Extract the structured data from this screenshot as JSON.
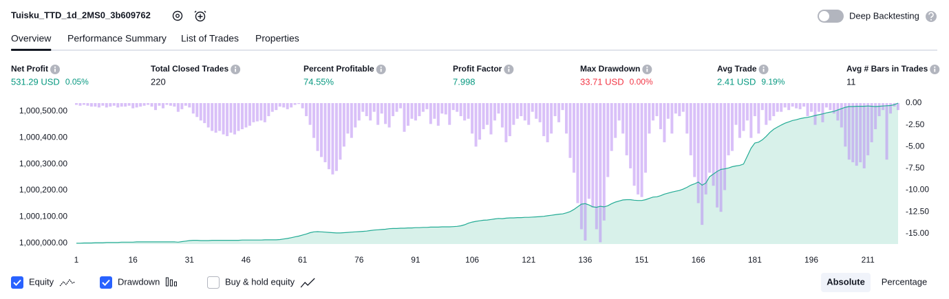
{
  "header": {
    "title": "Tuisku_TTD_1d_2MS0_3b609762",
    "deep_backtesting": {
      "label": "Deep Backtesting",
      "enabled": false
    }
  },
  "tabs": {
    "items": [
      "Overview",
      "Performance Summary",
      "List of Trades",
      "Properties"
    ],
    "active": 0
  },
  "metrics": [
    {
      "label": "Net Profit",
      "value": "531.29 USD",
      "sub": "0.05%",
      "tone": "up"
    },
    {
      "label": "Total Closed Trades",
      "value": 220,
      "tone": "neutral"
    },
    {
      "label": "Percent Profitable",
      "value": "74.55%",
      "tone": "up"
    },
    {
      "label": "Profit Factor",
      "value": "7.998",
      "tone": "up"
    },
    {
      "label": "Max Drawdown",
      "value": "33.71 USD",
      "sub": "0.00%",
      "tone": "down"
    },
    {
      "label": "Avg Trade",
      "value": "2.41 USD",
      "sub": "9.19%",
      "tone": "up"
    },
    {
      "label": "Avg # Bars in Trades",
      "value": 11,
      "tone": "neutral"
    }
  ],
  "chart_data": {
    "type": "equity_drawdown",
    "x": [
      1,
      2,
      3,
      4,
      5,
      6,
      7,
      8,
      9,
      10,
      11,
      12,
      13,
      14,
      15,
      16,
      17,
      18,
      19,
      20,
      21,
      22,
      23,
      24,
      25,
      26,
      27,
      28,
      29,
      30,
      31,
      32,
      33,
      34,
      35,
      36,
      37,
      38,
      39,
      40,
      41,
      42,
      43,
      44,
      45,
      46,
      47,
      48,
      49,
      50,
      51,
      52,
      53,
      54,
      55,
      56,
      57,
      58,
      59,
      60,
      61,
      62,
      63,
      64,
      65,
      66,
      67,
      68,
      69,
      70,
      71,
      72,
      73,
      74,
      75,
      76,
      77,
      78,
      79,
      80,
      81,
      82,
      83,
      84,
      85,
      86,
      87,
      88,
      89,
      90,
      91,
      92,
      93,
      94,
      95,
      96,
      97,
      98,
      99,
      100,
      101,
      102,
      103,
      104,
      105,
      106,
      107,
      108,
      109,
      110,
      111,
      112,
      113,
      114,
      115,
      116,
      117,
      118,
      119,
      120,
      121,
      122,
      123,
      124,
      125,
      126,
      127,
      128,
      129,
      130,
      131,
      132,
      133,
      134,
      135,
      136,
      137,
      138,
      139,
      140,
      141,
      142,
      143,
      144,
      145,
      146,
      147,
      148,
      149,
      150,
      151,
      152,
      153,
      154,
      155,
      156,
      157,
      158,
      159,
      160,
      161,
      162,
      163,
      164,
      165,
      166,
      167,
      168,
      169,
      170,
      171,
      172,
      173,
      174,
      175,
      176,
      177,
      178,
      179,
      180,
      181,
      182,
      183,
      184,
      185,
      186,
      187,
      188,
      189,
      190,
      191,
      192,
      193,
      194,
      195,
      196,
      197,
      198,
      199,
      200,
      201,
      202,
      203,
      204,
      205,
      206,
      207,
      208,
      209,
      210,
      211,
      212,
      213,
      214,
      215,
      216,
      217,
      218,
      219
    ],
    "xlim": [
      1,
      219
    ],
    "xticks": [
      1,
      16,
      31,
      46,
      61,
      76,
      91,
      106,
      121,
      136,
      151,
      166,
      181,
      196,
      211
    ],
    "ylim": [
      999997,
      1000531
    ],
    "yticks": [
      {
        "value": 1000000,
        "label": "1,000,000.00"
      },
      {
        "value": 1000100,
        "label": "1,000,100.00"
      },
      {
        "value": 1000200,
        "label": "1,000,200.00"
      },
      {
        "value": 1000300,
        "label": "1,000,300.00"
      },
      {
        "value": 1000400,
        "label": "1,000,400.00"
      },
      {
        "value": 1000500,
        "label": "1,000,500.00"
      }
    ],
    "y2lim": [
      -16.2,
      0
    ],
    "y2ticks": [
      {
        "value": 0,
        "label": "0.00"
      },
      {
        "value": -2.5,
        "label": "-2.50"
      },
      {
        "value": -5,
        "label": "-5.00"
      },
      {
        "value": -7.5,
        "label": "-7.50"
      },
      {
        "value": -10,
        "label": "-10.00"
      },
      {
        "value": -12.5,
        "label": "-12.50"
      },
      {
        "value": -15,
        "label": "-15.00"
      }
    ],
    "series": [
      {
        "name": "Equity",
        "color": "#22ab94",
        "area_color": "#d8f1ea",
        "checked": true,
        "values": [
          1000000,
          1000000,
          1000001,
          1000001,
          1000001,
          1000002,
          1000002,
          1000002,
          1000003,
          1000003,
          1000003,
          1000003,
          1000004,
          1000004,
          1000004,
          1000004,
          1000005,
          1000005,
          1000005,
          1000005,
          1000005,
          1000005,
          1000005,
          1000005,
          1000005,
          1000005,
          1000005,
          1000004,
          1000006,
          1000008,
          1000010,
          1000011,
          1000011,
          1000010,
          1000010,
          1000010,
          1000011,
          1000011,
          1000011,
          1000011,
          1000011,
          1000011,
          1000011,
          1000011,
          1000012,
          1000012,
          1000012,
          1000012,
          1000012,
          1000012,
          1000013,
          1000013,
          1000013,
          1000013,
          1000014,
          1000016,
          1000018,
          1000021,
          1000024,
          1000027,
          1000031,
          1000035,
          1000040,
          1000043,
          1000044,
          1000043,
          1000042,
          1000041,
          1000040,
          1000039,
          1000039,
          1000040,
          1000041,
          1000042,
          1000043,
          1000044,
          1000045,
          1000046,
          1000048,
          1000050,
          1000051,
          1000052,
          1000053,
          1000055,
          1000056,
          1000056,
          1000057,
          1000057,
          1000058,
          1000058,
          1000059,
          1000059,
          1000060,
          1000060,
          1000061,
          1000061,
          1000061,
          1000062,
          1000062,
          1000062,
          1000063,
          1000064,
          1000066,
          1000070,
          1000076,
          1000080,
          1000083,
          1000085,
          1000087,
          1000088,
          1000090,
          1000092,
          1000094,
          1000093,
          1000095,
          1000096,
          1000096,
          1000097,
          1000097,
          1000098,
          1000098,
          1000099,
          1000100,
          1000101,
          1000102,
          1000104,
          1000106,
          1000108,
          1000110,
          1000111,
          1000115,
          1000120,
          1000128,
          1000138,
          1000148,
          1000150,
          1000145,
          1000138,
          1000136,
          1000140,
          1000138,
          1000142,
          1000150,
          1000156,
          1000160,
          1000164,
          1000165,
          1000165,
          1000163,
          1000162,
          1000162,
          1000165,
          1000170,
          1000175,
          1000176,
          1000180,
          1000186,
          1000190,
          1000194,
          1000197,
          1000200,
          1000205,
          1000212,
          1000220,
          1000225,
          1000232,
          1000220,
          1000228,
          1000252,
          1000262,
          1000272,
          1000280,
          1000282,
          1000285,
          1000290,
          1000293,
          1000295,
          1000300,
          1000330,
          1000360,
          1000380,
          1000383,
          1000392,
          1000405,
          1000420,
          1000432,
          1000440,
          1000448,
          1000455,
          1000460,
          1000465,
          1000468,
          1000472,
          1000475,
          1000477,
          1000480,
          1000484,
          1000487,
          1000490,
          1000494,
          1000497,
          1000500,
          1000505,
          1000510,
          1000515,
          1000518,
          1000518,
          1000519,
          1000519,
          1000519,
          1000520,
          1000519,
          1000518,
          1000519,
          1000520,
          1000521,
          1000522,
          1000525,
          1000531
        ]
      },
      {
        "name": "Drawdown",
        "color": "#b98cf3",
        "axis": "y2",
        "checked": true,
        "values": [
          -0.2,
          -0.3,
          -0.2,
          -0.3,
          -0.4,
          -0.4,
          -0.5,
          -0.3,
          -0.5,
          -0.4,
          -0.3,
          -0.5,
          -0.4,
          -0.4,
          -0.3,
          -0.6,
          -0.5,
          -0.4,
          -0.3,
          -0.2,
          -0.4,
          -0.8,
          -0.3,
          -0.6,
          -0.2,
          -0.3,
          -0.4,
          -1.0,
          -0.7,
          -0.3,
          -0.5,
          -1.2,
          -1.6,
          -2.0,
          -2.3,
          -2.8,
          -3.2,
          -3.4,
          -3.2,
          -3.6,
          -3.8,
          -3.4,
          -3.6,
          -3.2,
          -3.0,
          -2.8,
          -2.6,
          -2.2,
          -2.1,
          -2.0,
          -2.2,
          -1.5,
          -1.0,
          -0.8,
          -0.4,
          -0.5,
          -0.7,
          -0.5,
          -0.2,
          -0.1,
          -0.6,
          -1.5,
          -2.5,
          -4.0,
          -5.5,
          -6.2,
          -6.8,
          -7.6,
          -8.2,
          -7.8,
          -6.5,
          -5.0,
          -3.5,
          -4.0,
          -2.8,
          -2.0,
          -1.0,
          -1.5,
          -2.0,
          -1.0,
          -2.5,
          -1.2,
          -2.4,
          -2.8,
          -1.5,
          -1.0,
          -0.6,
          -3.3,
          -2.6,
          -1.8,
          -2.0,
          -1.5,
          -1.0,
          -0.7,
          -2.4,
          -1.8,
          -2.6,
          -1.2,
          -1.3,
          -2.5,
          -0.8,
          -1.0,
          -1.5,
          -2.0,
          -1.8,
          -3.5,
          -5.0,
          -4.2,
          -3.0,
          -2.5,
          -3.6,
          -2.0,
          -1.2,
          -2.8,
          -4.5,
          -3.8,
          -2.5,
          -1.8,
          -1.5,
          -2.0,
          -2.5,
          -1.0,
          -1.8,
          -2.2,
          -3.8,
          -4.5,
          -3.5,
          -1.5,
          -2.2,
          -0.8,
          -3.5,
          -6.3,
          -8.0,
          -11.5,
          -14.5,
          -15.8,
          -11.0,
          -12.0,
          -14.5,
          -16.0,
          -13.5,
          -8.5,
          -5.5,
          -4.0,
          -2.0,
          -3.5,
          -6.0,
          -7.5,
          -9.5,
          -10.5,
          -10.8,
          -8.0,
          -3.5,
          -2.0,
          -1.5,
          -3.0,
          -4.5,
          -1.8,
          -3.5,
          -1.2,
          -1.5,
          -1.0,
          -3.5,
          -6.0,
          -8.5,
          -11.5,
          -14.0,
          -10.5,
          -8.0,
          -9.5,
          -12.0,
          -12.5,
          -10.0,
          -6.0,
          -5.5,
          -2.5,
          -4.0,
          -3.2,
          -2.0,
          -4.0,
          -1.5,
          -3.5,
          -0.8,
          -2.5,
          -2.0,
          -1.5,
          -1.0,
          -1.0,
          -0.5,
          -0.8,
          -0.4,
          -0.6,
          -0.7,
          -0.4,
          -1.5,
          -1.0,
          -2.5,
          -1.0,
          -2.2,
          -0.5,
          -0.8,
          -1.2,
          -2.0,
          -2.8,
          -5.0,
          -6.5,
          -6.8,
          -7.2,
          -6.8,
          -7.5,
          -6.0,
          -4.5,
          -3.0,
          -1.5,
          -0.8,
          -6.5,
          -1.2,
          -0.4,
          -0.8
        ]
      }
    ]
  },
  "controls": {
    "buy_hold": {
      "label": "Buy & hold equity",
      "checked": false
    },
    "modes": {
      "items": [
        "Absolute",
        "Percentage"
      ],
      "active": 0
    }
  }
}
